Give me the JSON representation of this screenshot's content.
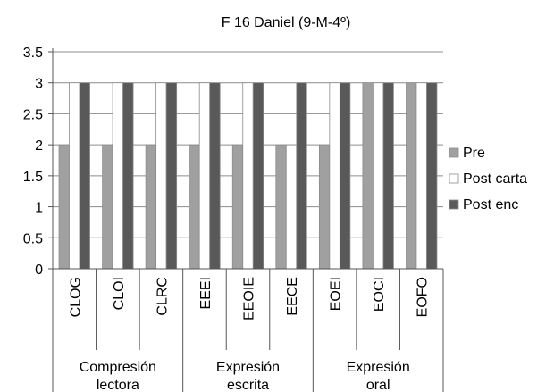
{
  "chart_data": {
    "type": "bar",
    "title": "F 16 Daniel (9-M-4º)",
    "categories": [
      "CLOG",
      "CLOI",
      "CLRC",
      "EEEI",
      "EEOIE",
      "EECE",
      "EOEI",
      "EOCI",
      "EOFO"
    ],
    "groups": [
      {
        "label_lines": [
          "Compresión",
          "lectora"
        ],
        "categories": [
          "CLOG",
          "CLOI",
          "CLRC"
        ]
      },
      {
        "label_lines": [
          "Expresión",
          "escrita"
        ],
        "categories": [
          "EEEI",
          "EEOIE",
          "EECE"
        ]
      },
      {
        "label_lines": [
          "Expresión",
          "oral"
        ],
        "categories": [
          "EOEI",
          "EOCI",
          "EOFO"
        ]
      }
    ],
    "series": [
      {
        "name": "Pre",
        "color": "#a0a0a0",
        "values": [
          2,
          2,
          2,
          2,
          2,
          2,
          2,
          3,
          3
        ]
      },
      {
        "name": "Post carta",
        "color": "#ffffff",
        "values": [
          3,
          3,
          3,
          3,
          3,
          2,
          3,
          3,
          3
        ]
      },
      {
        "name": "Post enc",
        "color": "#595959",
        "values": [
          3,
          3,
          3,
          3,
          3,
          3,
          3,
          3,
          3
        ]
      }
    ],
    "ylim": [
      0,
      3.5
    ],
    "yticks": [
      "0",
      "0.5",
      "1",
      "1.5",
      "2",
      "2.5",
      "3",
      "3.5"
    ],
    "grid": true,
    "legend": "right"
  }
}
